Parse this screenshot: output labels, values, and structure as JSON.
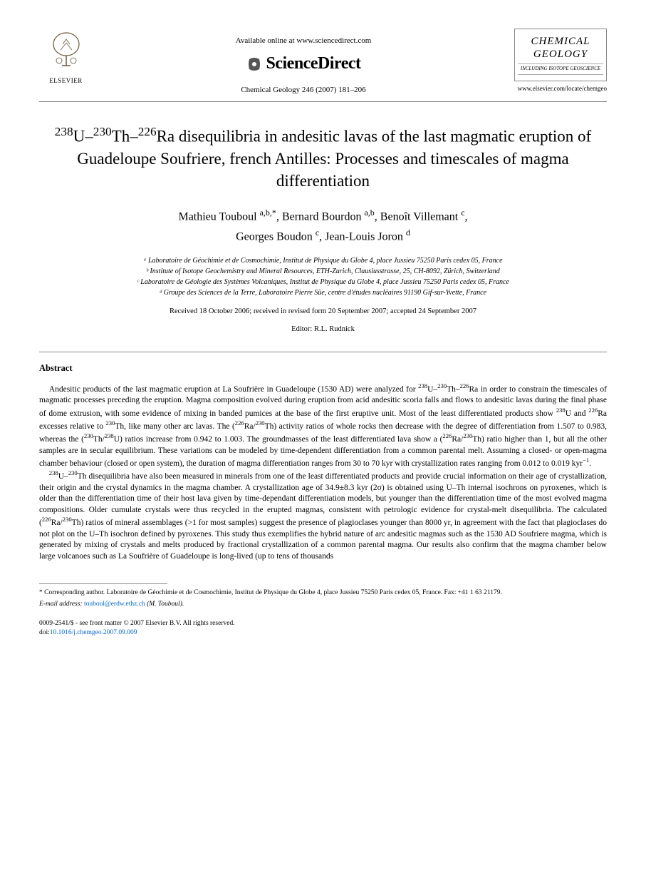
{
  "header": {
    "elsevier_label": "ELSEVIER",
    "available_online": "Available online at www.sciencedirect.com",
    "sciencedirect": "ScienceDirect",
    "journal_ref": "Chemical Geology 246 (2007) 181–206",
    "journal_title_1": "CHEMICAL",
    "journal_title_2": "GEOLOGY",
    "journal_subtitle": "INCLUDING ISOTOPE GEOSCIENCE",
    "journal_url": "www.elsevier.com/locate/chemgeo"
  },
  "title_html": "<sup>238</sup>U–<sup>230</sup>Th–<sup>226</sup>Ra disequilibria in andesitic lavas of the last magmatic eruption of Guadeloupe Soufriere, french Antilles: Processes and timescales of magma differentiation",
  "authors_html": "Mathieu Touboul <sup>a,b,*</sup>, Bernard Bourdon <sup>a,b</sup>, Benoît Villemant <sup>c</sup>,<br>Georges Boudon <sup>c</sup>, Jean-Louis Joron <sup>d</sup>",
  "affiliations": [
    "ᵃ Laboratoire de Géochimie et de Cosmochimie, Institut de Physique du Globe 4, place Jussieu 75250 Paris cedex 05, France",
    "ᵇ Institute of Isotope Geochemistry and Mineral Resources, ETH-Zurich, Clausiusstrasse, 25, CH-8092, Zürich, Switzerland",
    "ᶜ Laboratoire de Géologie des Systèmes Volcaniques, Institut de Physique du Globe 4, place Jussieu 75250 Paris cedex 05, France",
    "ᵈ Groupe des Sciences de la Terre, Laboratoire Pierre Süe, centre d'études nucléaires 91190 Gif-sur-Yvette, France"
  ],
  "dates": "Received 18 October 2006; received in revised form 20 September 2007; accepted 24 September 2007",
  "editor": "Editor: R.L. Rudnick",
  "abstract_heading": "Abstract",
  "abstract_p1_html": "Andesitic products of the last magmatic eruption at La Soufrière in Guadeloupe (1530 AD) were analyzed for <sup>238</sup>U–<sup>230</sup>Th–<sup>226</sup>Ra in order to constrain the timescales of magmatic processes preceding the eruption. Magma composition evolved during eruption from acid andesitic scoria falls and flows to andesitic lavas during the final phase of dome extrusion, with some evidence of mixing in banded pumices at the base of the first eruptive unit. Most of the least differentiated products show <sup>238</sup>U and <sup>226</sup>Ra excesses relative to <sup>230</sup>Th, like many other arc lavas. The (<sup>226</sup>Ra/<sup>230</sup>Th) activity ratios of whole rocks then decrease with the degree of differentiation from 1.507 to 0.983, whereas the (<sup>230</sup>Th/<sup>238</sup>U) ratios increase from 0.942 to 1.003. The groundmasses of the least differentiated lava show a (<sup>226</sup>Ra/<sup>230</sup>Th) ratio higher than 1, but all the other samples are in secular equilibrium. These variations can be modeled by time-dependent differentiation from a common parental melt. Assuming a closed- or open-magma chamber behaviour (closed or open system), the duration of magma differentiation ranges from 30 to 70 kyr with crystallization rates ranging from 0.012 to 0.019 kyr<sup>−1</sup>.",
  "abstract_p2_html": "<sup>238</sup>U–<sup>230</sup>Th disequilibria have also been measured in minerals from one of the least differentiated products and provide crucial information on their age of crystallization, their origin and the crystal dynamics in the magma chamber. A crystallization age of 34.9±8.3 kyr (2σ) is obtained using U–Th internal isochrons on pyroxenes, which is older than the differentiation time of their host lava given by time-dependant differentiation models, but younger than the differentiation time of the most evolved magma compositions. Older cumulate crystals were thus recycled in the erupted magmas, consistent with petrologic evidence for crystal-melt disequilibria. The calculated (<sup>226</sup>Ra/<sup>230</sup>Th) ratios of mineral assemblages (>1 for most samples) suggest the presence of plagioclases younger than 8000 yr, in agreement with the fact that plagioclases do not plot on the U–Th isochron defined by pyroxenes. This study thus exemplifies the hybrid nature of arc andesitic magmas such as the 1530 AD Soufriere magma, which is generated by mixing of crystals and melts produced by fractional crystallization of a common parental magma. Our results also confirm that the magma chamber below large volcanoes such as La Soufrière of Guadeloupe is long-lived (up to tens of thousands",
  "corresponding_html": "* Corresponding author. Laboratoire de Géochimie et de Cosmochimie, Institut de Physique du Globe 4, place Jussieu 75250 Paris cedex 05, France. Fax: +41 1 63 21179.",
  "email_label": "E-mail address:",
  "email": "touboul@erdw.ethz.ch",
  "email_author": "(M. Touboul).",
  "copyright_line1": "0009-2541/$ - see front matter © 2007 Elsevier B.V. All rights reserved.",
  "doi_label": "doi:",
  "doi": "10.1016/j.chemgeo.2007.09.009"
}
